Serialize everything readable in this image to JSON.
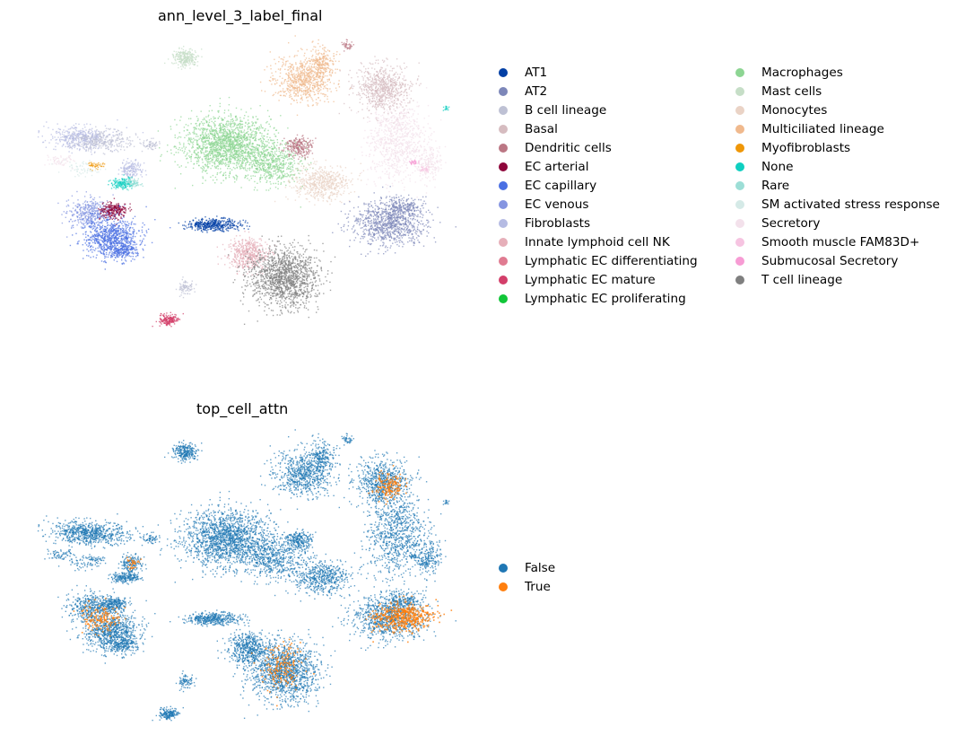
{
  "chart_data": [
    {
      "type": "scatter",
      "title": "ann_level_3_label_final",
      "xlabel": "",
      "ylabel": "",
      "grid": false,
      "axes_visible": false,
      "legend_placement": "right, two columns",
      "categories": [
        {
          "name": "AT1",
          "color": "#023fa5"
        },
        {
          "name": "AT2",
          "color": "#7d87b9"
        },
        {
          "name": "B cell lineage",
          "color": "#bec1d4"
        },
        {
          "name": "Basal",
          "color": "#d6bcc0"
        },
        {
          "name": "Dendritic cells",
          "color": "#bb7784"
        },
        {
          "name": "EC arterial",
          "color": "#8e063b"
        },
        {
          "name": "EC capillary",
          "color": "#4a6fe3"
        },
        {
          "name": "EC venous",
          "color": "#8595e1"
        },
        {
          "name": "Fibroblasts",
          "color": "#b5bbe3"
        },
        {
          "name": "Innate lymphoid cell NK",
          "color": "#e6afb9"
        },
        {
          "name": "Lymphatic EC differentiating",
          "color": "#e07b91"
        },
        {
          "name": "Lymphatic EC mature",
          "color": "#d33f6a"
        },
        {
          "name": "Lymphatic EC proliferating",
          "color": "#11c638"
        },
        {
          "name": "Macrophages",
          "color": "#8dd593"
        },
        {
          "name": "Mast cells",
          "color": "#c6dec7"
        },
        {
          "name": "Monocytes",
          "color": "#ead3c6"
        },
        {
          "name": "Multiciliated lineage",
          "color": "#f0b98d"
        },
        {
          "name": "Myofibroblasts",
          "color": "#ef9708"
        },
        {
          "name": "None",
          "color": "#0fcfc0"
        },
        {
          "name": "Rare",
          "color": "#9cded6"
        },
        {
          "name": "SM activated stress response",
          "color": "#d5eae7"
        },
        {
          "name": "Secretory",
          "color": "#f3e1eb"
        },
        {
          "name": "Smooth muscle FAM83D+",
          "color": "#f6c4e1"
        },
        {
          "name": "Submucosal Secretory",
          "color": "#f79cd4"
        },
        {
          "name": "T cell lineage",
          "color": "#7f7f7f"
        }
      ]
    },
    {
      "type": "scatter",
      "title": "top_cell_attn",
      "xlabel": "",
      "ylabel": "",
      "grid": false,
      "axes_visible": false,
      "legend_placement": "right",
      "categories": [
        {
          "name": "False",
          "color": "#1f77b4"
        },
        {
          "name": "True",
          "color": "#ff7f0e"
        }
      ]
    }
  ]
}
